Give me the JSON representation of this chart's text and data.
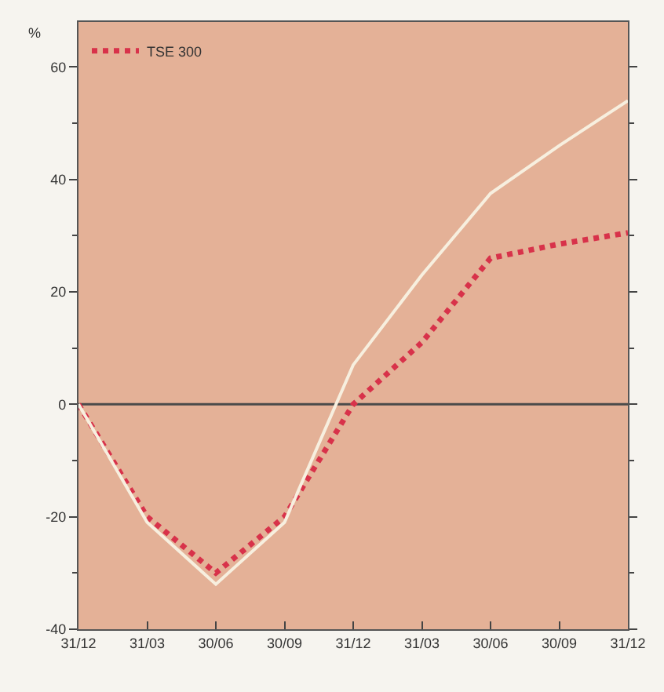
{
  "chart_data": {
    "type": "line",
    "ylabel": "%",
    "categories": [
      "31/12",
      "31/03",
      "30/06",
      "30/09",
      "31/12",
      "31/03",
      "30/06",
      "30/09",
      "31/12"
    ],
    "series": [
      {
        "name": "TSE 300",
        "color": "#d8324a",
        "line_style": "dotted",
        "values": [
          0,
          -20,
          -30,
          -20,
          0,
          11,
          26,
          28.5,
          30.5
        ]
      },
      {
        "color": "#f7efdf",
        "line_style": "solid",
        "values": [
          0,
          -21,
          -32,
          -21,
          7,
          23,
          37.5,
          46,
          54
        ]
      }
    ],
    "ylim": [
      -40,
      68
    ],
    "yticks": [
      -40,
      -20,
      0,
      20,
      40,
      60
    ],
    "ref_lines": [
      {
        "axis": "y",
        "value": 0,
        "color": "#4a4a4a"
      }
    ],
    "grid": false,
    "legend": "top left",
    "marker": "none"
  }
}
